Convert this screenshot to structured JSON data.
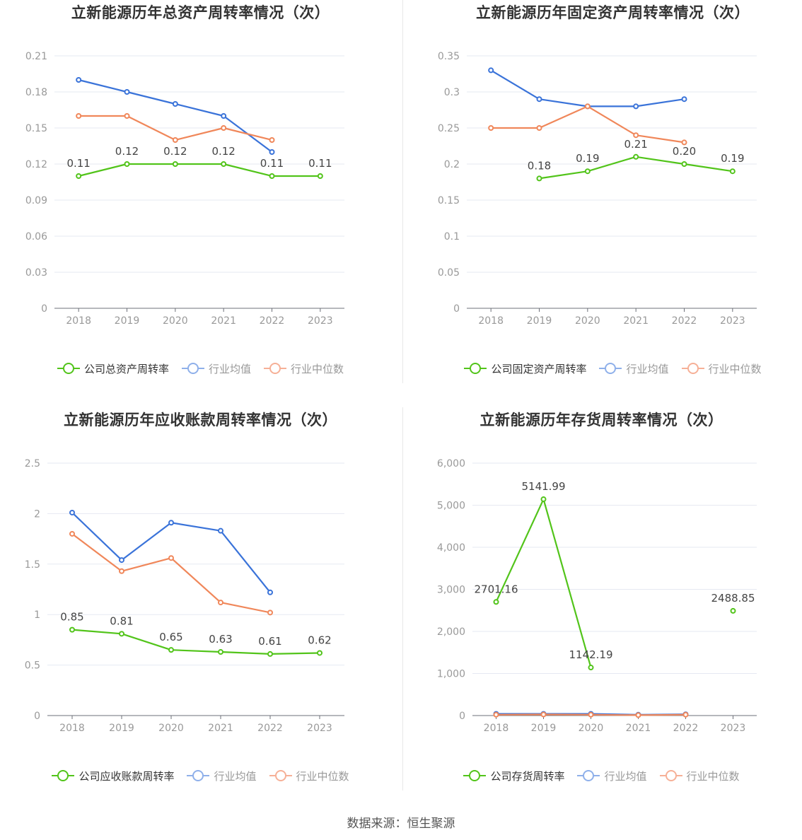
{
  "source_text": "数据来源：恒生聚源",
  "colors": {
    "company": "#52c41a",
    "avg": "#3a73d9",
    "median": "#f0875a",
    "legend_avg": "#8fb0ea",
    "legend_median": "#f6b097"
  },
  "chart_data": [
    {
      "type": "line",
      "title": "立新能源历年总资产周转率情况（次）",
      "x": [
        "2018",
        "2019",
        "2020",
        "2021",
        "2022",
        "2023"
      ],
      "ylim": [
        0,
        0.21
      ],
      "yticks": [
        "0",
        "0.03",
        "0.06",
        "0.09",
        "0.12",
        "0.15",
        "0.18",
        "0.21"
      ],
      "grid": true,
      "legend_position": "bottom",
      "series": [
        {
          "name": "公司总资产周转率",
          "values": [
            0.11,
            0.12,
            0.12,
            0.12,
            0.11,
            0.11
          ],
          "labels": [
            "0.11",
            "0.12",
            "0.12",
            "0.12",
            "0.11",
            "0.11"
          ]
        },
        {
          "name": "行业均值",
          "values": [
            0.19,
            0.18,
            0.17,
            0.16,
            0.13,
            null
          ]
        },
        {
          "name": "行业中位数",
          "values": [
            0.16,
            0.16,
            0.14,
            0.15,
            0.14,
            null
          ]
        }
      ]
    },
    {
      "type": "line",
      "title": "立新能源历年固定资产周转率情况（次）",
      "x": [
        "2018",
        "2019",
        "2020",
        "2021",
        "2022",
        "2023"
      ],
      "ylim": [
        0,
        0.35
      ],
      "yticks": [
        "0",
        "0.05",
        "0.1",
        "0.15",
        "0.2",
        "0.25",
        "0.3",
        "0.35"
      ],
      "grid": true,
      "legend_position": "bottom",
      "series": [
        {
          "name": "公司固定资产周转率",
          "values": [
            null,
            0.18,
            0.19,
            0.21,
            0.2,
            0.19
          ],
          "labels": [
            null,
            "0.18",
            "0.19",
            "0.21",
            "0.20",
            "0.19"
          ]
        },
        {
          "name": "行业均值",
          "values": [
            0.33,
            0.29,
            0.28,
            0.28,
            0.29,
            null
          ]
        },
        {
          "name": "行业中位数",
          "values": [
            0.25,
            0.25,
            0.28,
            0.24,
            0.23,
            null
          ]
        }
      ]
    },
    {
      "type": "line",
      "title": "立新能源历年应收账款周转率情况（次）",
      "x": [
        "2018",
        "2019",
        "2020",
        "2021",
        "2022",
        "2023"
      ],
      "ylim": [
        0,
        2.5
      ],
      "yticks": [
        "0",
        "0.5",
        "1",
        "1.5",
        "2",
        "2.5"
      ],
      "grid": true,
      "legend_position": "bottom",
      "series": [
        {
          "name": "公司应收账款周转率",
          "values": [
            0.85,
            0.81,
            0.65,
            0.63,
            0.61,
            0.62
          ],
          "labels": [
            "0.85",
            "0.81",
            "0.65",
            "0.63",
            "0.61",
            "0.62"
          ]
        },
        {
          "name": "行业均值",
          "values": [
            2.01,
            1.54,
            1.91,
            1.83,
            1.22,
            null
          ]
        },
        {
          "name": "行业中位数",
          "values": [
            1.8,
            1.43,
            1.56,
            1.12,
            1.02,
            null
          ]
        }
      ]
    },
    {
      "type": "line",
      "title": "立新能源历年存货周转率情况（次）",
      "x": [
        "2018",
        "2019",
        "2020",
        "2021",
        "2022",
        "2023"
      ],
      "ylim": [
        0,
        6000
      ],
      "yticks": [
        "0",
        "1,000",
        "2,000",
        "3,000",
        "4,000",
        "5,000",
        "6,000"
      ],
      "grid": true,
      "legend_position": "bottom",
      "series": [
        {
          "name": "公司存货周转率",
          "values": [
            2701.16,
            5141.99,
            1142.19,
            null,
            null,
            2488.85
          ],
          "labels": [
            "2701.16",
            "5141.99",
            "1142.19",
            null,
            null,
            "2488.85"
          ]
        },
        {
          "name": "行业均值",
          "values": [
            40,
            40,
            40,
            20,
            30,
            null
          ]
        },
        {
          "name": "行业中位数",
          "values": [
            20,
            25,
            20,
            10,
            20,
            null
          ]
        }
      ]
    }
  ]
}
